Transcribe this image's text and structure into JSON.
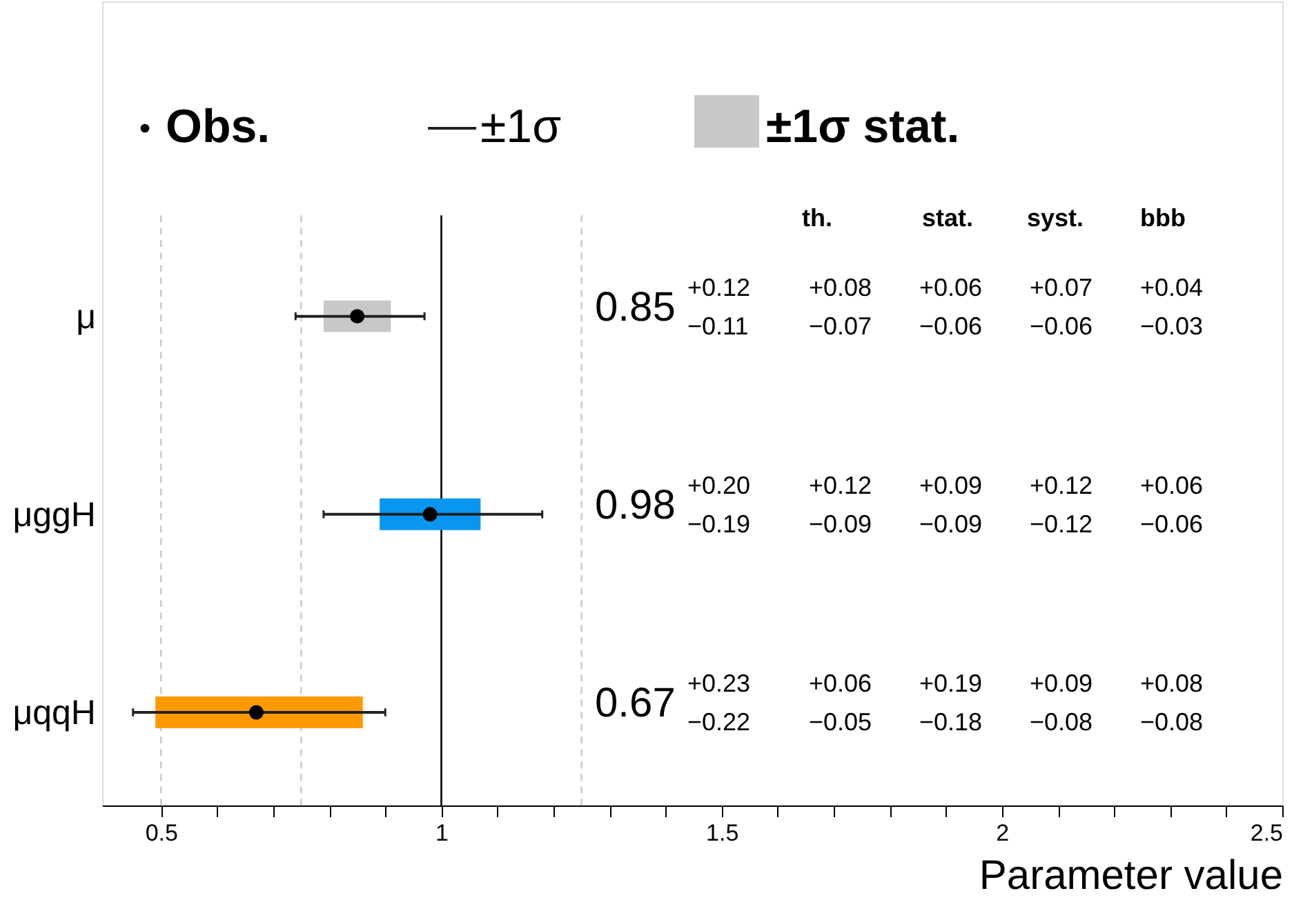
{
  "chart_data": {
    "type": "scatter",
    "orientation": "horizontal",
    "xlabel": "Parameter value",
    "categories": [
      "μ",
      "μggH",
      "μqqH"
    ],
    "series": [
      {
        "name": "Obs.",
        "color": "#000000",
        "marker": "circle",
        "values": [
          0.85,
          0.98,
          0.67
        ],
        "errors": [
          [
            0.74,
            0.97
          ],
          [
            0.79,
            1.18
          ],
          [
            0.45,
            0.9
          ]
        ]
      },
      {
        "name": "±1σ stat.",
        "type": "bar",
        "colors": [
          "#c8c8c8",
          "#0896f0",
          "#ff9900"
        ],
        "base": [
          0.79,
          0.89,
          0.49
        ],
        "values": [
          0.12,
          0.18,
          0.37
        ]
      }
    ],
    "xlim": [
      0.395,
      2.5
    ],
    "xticks": [
      0.5,
      {
        "value": 0.6,
        "label": null
      },
      {
        "value": 0.7,
        "label": null
      },
      {
        "value": 0.8,
        "label": null
      },
      {
        "value": 0.9,
        "label": null
      },
      1,
      {
        "value": 1.1,
        "label": null
      },
      {
        "value": 1.2,
        "label": null
      },
      {
        "value": 1.3,
        "label": null
      },
      {
        "value": 1.4,
        "label": null
      },
      1.5,
      {
        "value": 1.6,
        "label": null
      },
      {
        "value": 1.7,
        "label": null
      },
      {
        "value": 1.8,
        "label": null
      },
      {
        "value": 1.9,
        "label": null
      },
      2,
      {
        "value": 2.1,
        "label": null
      },
      {
        "value": 2.2,
        "label": null
      },
      {
        "value": 2.3,
        "label": null
      },
      {
        "value": 2.4,
        "label": null
      },
      2.5
    ],
    "ref_lines": [
      {
        "axis": "x",
        "value": 1,
        "color": "#000000",
        "line_style": "solid"
      },
      {
        "axis": "x",
        "value": 0.5,
        "color": "#cccccc",
        "line_style": "dashed"
      },
      {
        "axis": "x",
        "value": 0.75,
        "color": "#cccccc",
        "line_style": "dashed"
      },
      {
        "axis": "x",
        "value": 1.25,
        "color": "#cccccc",
        "line_style": "dashed"
      }
    ],
    "grid": false,
    "legend": "top",
    "annotations": [
      "±1σ",
      "th.",
      "stat.",
      "syst.",
      "bbb",
      "0.85",
      "+0.12",
      "−0.11",
      "+0.08",
      "−0.07",
      "+0.06",
      "−0.06",
      "+0.07",
      "−0.06",
      "+0.04",
      "−0.03",
      "0.98",
      "+0.20",
      "−0.19",
      "+0.12",
      "−0.09",
      "+0.09",
      "−0.09",
      "+0.12",
      "−0.12",
      "+0.06",
      "−0.06",
      "0.67",
      "+0.23",
      "−0.22",
      "+0.06",
      "−0.05",
      "+0.19",
      "−0.18",
      "+0.09",
      "−0.08",
      "+0.08",
      "−0.08"
    ]
  }
}
